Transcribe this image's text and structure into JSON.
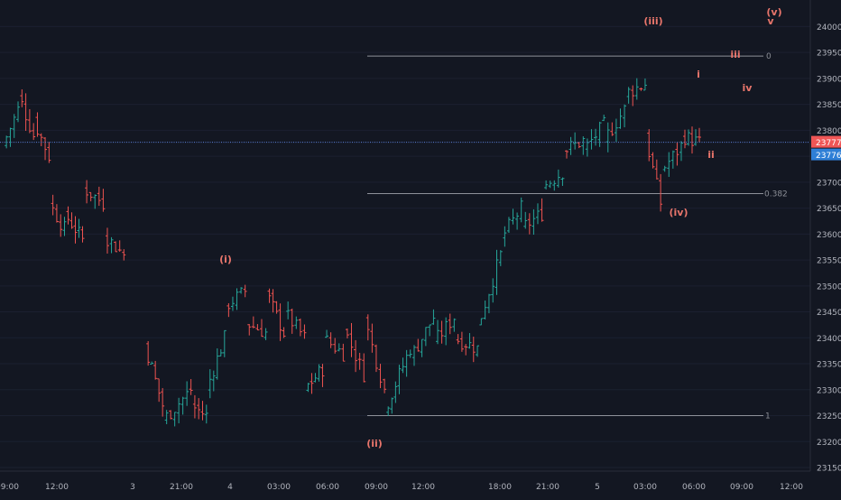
{
  "colors": {
    "background": "#131722",
    "up": "#26a69a",
    "down": "#ef5350",
    "label": "#e8756b",
    "fib": "#a4a7ae",
    "price_line": "#5b7fd9",
    "bid_badge": "#f05656",
    "ask_badge": "#2f7fd6",
    "axis_text": "#b2b5be"
  },
  "chart_data": {
    "type": "ohlc",
    "title": "",
    "xlabel": "",
    "ylabel": "",
    "ylim": [
      23125,
      24025
    ],
    "y_ticks": [
      23150,
      23200,
      23250,
      23300,
      23350,
      23400,
      23450,
      23500,
      23550,
      23600,
      23650,
      23700,
      23750,
      23800,
      23850,
      23900,
      23950,
      24000
    ],
    "x_tick_labels": [
      "09:00",
      "12:00",
      "3",
      "21:00",
      "4",
      "03:00",
      "06:00",
      "09:00",
      "12:00",
      "18:00",
      "21:00",
      "5",
      "03:00",
      "06:00",
      "09:00",
      "12:00"
    ],
    "last_price": 23777,
    "second_price": 23776,
    "fib_levels": [
      {
        "label": "0",
        "price": 23943
      },
      {
        "label": "0.382",
        "price": 23678
      },
      {
        "label": "1",
        "price": 23250
      }
    ],
    "wave_labels": [
      {
        "text": "(i)",
        "price": 23540
      },
      {
        "text": "(ii)",
        "price": 23210
      },
      {
        "text": "(iii)",
        "price": 24012
      },
      {
        "text": "(iv)",
        "price": 23642
      },
      {
        "text": "(v)",
        "price": 24030
      },
      {
        "text": "i",
        "price": 23898
      },
      {
        "text": "ii",
        "price": 23720
      },
      {
        "text": "iii",
        "price": 23926
      },
      {
        "text": "iv",
        "price": 23872
      },
      {
        "text": "v",
        "price": 24010
      }
    ],
    "anchors": [
      [
        23800,
        23770
      ],
      [
        23840,
        23870
      ],
      [
        23790,
        23820
      ],
      [
        23750,
        23660
      ],
      [
        23610,
        23640
      ],
      [
        23590,
        23690
      ],
      [
        23660,
        23600
      ],
      [
        23560,
        23530
      ],
      [
        null,
        23390
      ],
      [
        23270,
        23240
      ],
      [
        23300,
        23270
      ],
      [
        23250,
        23300
      ],
      [
        23400,
        23460
      ],
      [
        23490,
        23430
      ],
      [
        23410,
        23490
      ],
      [
        23410,
        23450
      ],
      [
        23400,
        23300
      ],
      [
        23340,
        23400
      ],
      [
        23370,
        23420
      ],
      [
        23330,
        23440
      ],
      [
        23300,
        23260
      ],
      [
        23380,
        23360
      ],
      [
        23440,
        23390
      ],
      [
        23440,
        23400
      ],
      [
        23380,
        23420
      ],
      [
        23560,
        23590
      ],
      [
        23650,
        23610
      ],
      [
        23640,
        23690
      ],
      [
        23720,
        23760
      ],
      [
        23780,
        23760
      ],
      [
        23810,
        23780
      ],
      [
        23840,
        23870
      ],
      [
        23890,
        23790
      ],
      [
        23660,
        23720
      ],
      [
        23770,
        23790
      ],
      [
        23776,
        23777
      ]
    ]
  }
}
